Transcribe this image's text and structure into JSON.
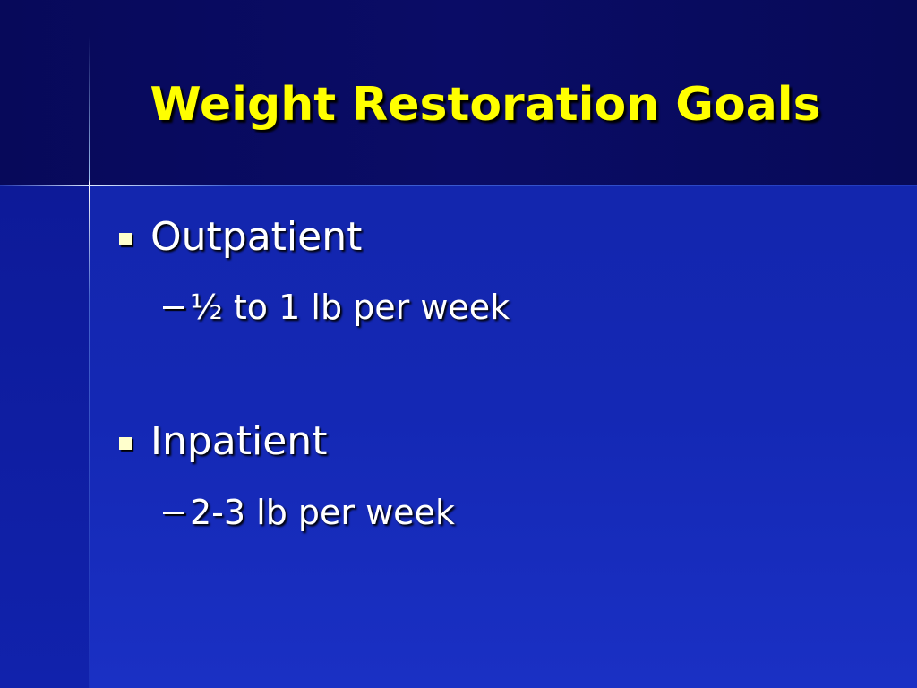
{
  "title": "Weight Restoration Goals",
  "bullets": [
    {
      "text": "Outpatient",
      "items": [
        "½ to 1 lb per week"
      ]
    },
    {
      "text": "Inpatient",
      "items": [
        "2-3 lb per week"
      ]
    }
  ]
}
